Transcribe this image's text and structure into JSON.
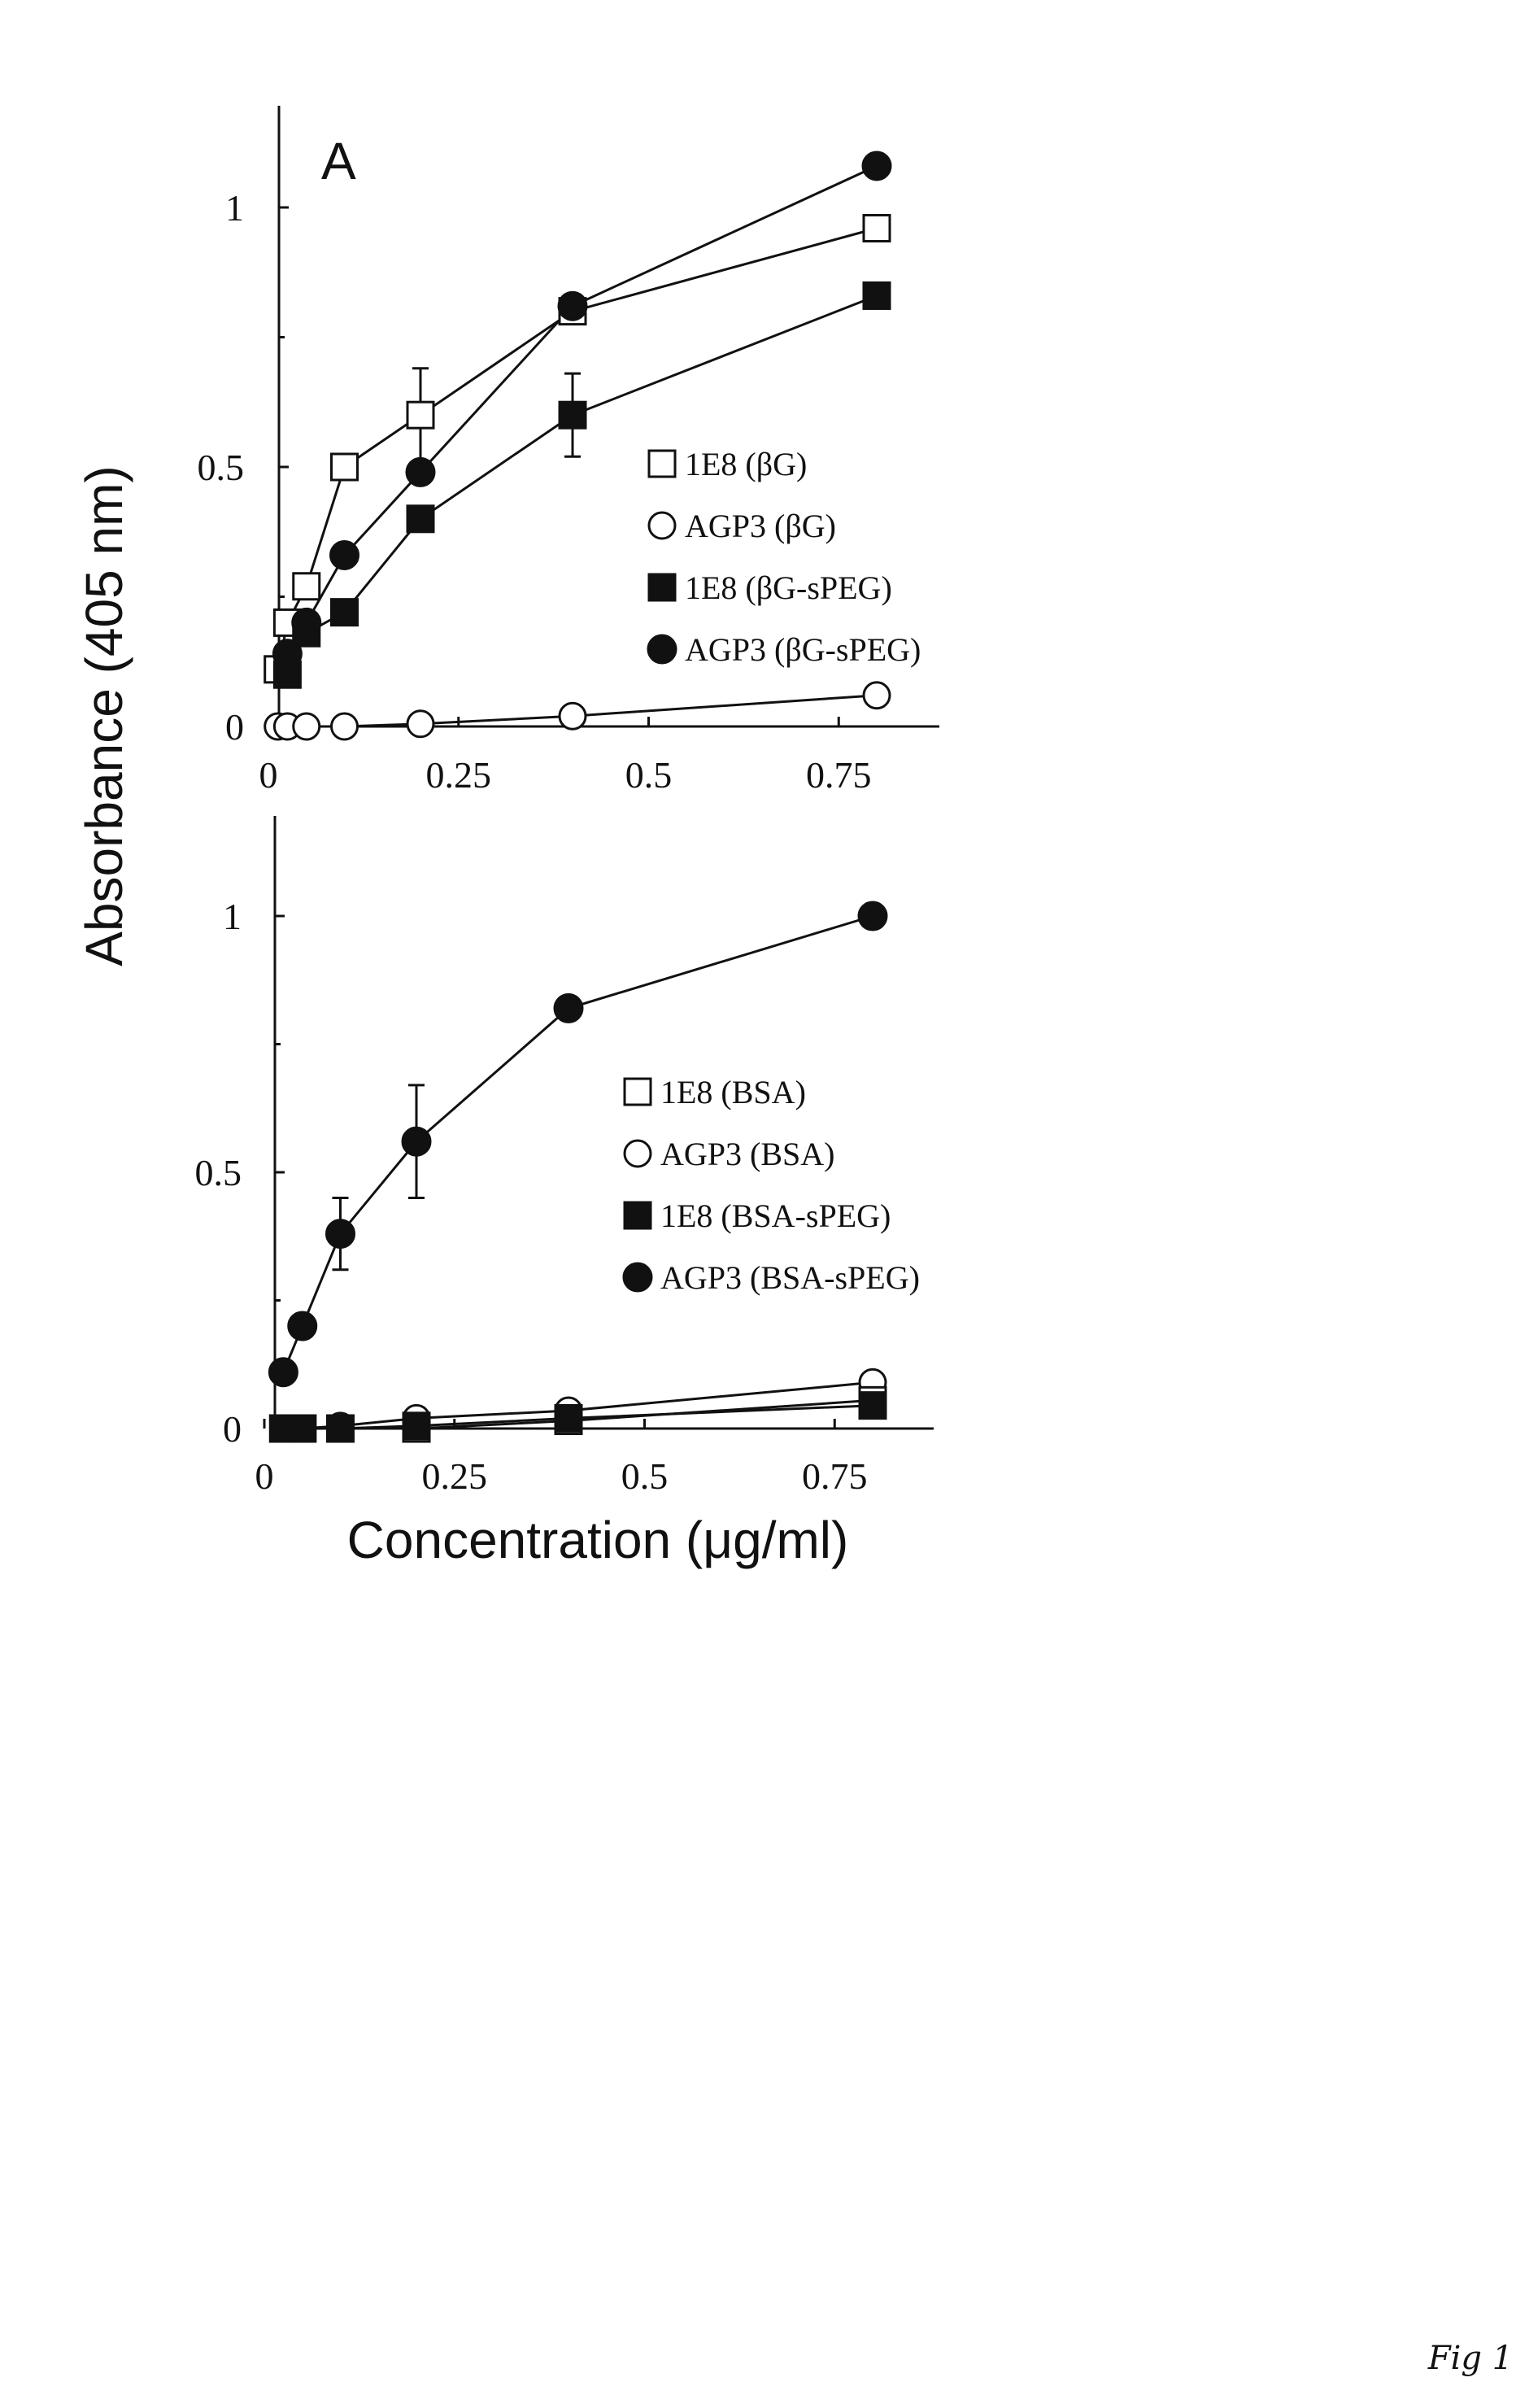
{
  "chart_data": [
    {
      "type": "line",
      "panel_label": "A",
      "ylabel": "Absorbance (405 nm)",
      "xlabel": "",
      "xlim": [
        0,
        0.9
      ],
      "ylim": [
        0,
        1.2
      ],
      "xticks": [
        "0",
        "0.25",
        "0.5",
        "0.75"
      ],
      "yticks": [
        "0",
        "0.5",
        "1"
      ],
      "legend_position": "center-right",
      "grid": false,
      "series": [
        {
          "name": "1E8 (βG)",
          "marker": "open-square",
          "x": [
            0.0125,
            0.025,
            0.05,
            0.1,
            0.2,
            0.4,
            0.8
          ],
          "y": [
            0.11,
            0.2,
            0.27,
            0.5,
            0.6,
            0.8,
            0.96
          ]
        },
        {
          "name": "AGP3 (βG)",
          "marker": "open-circle",
          "x": [
            0.0125,
            0.025,
            0.05,
            0.1,
            0.2,
            0.4,
            0.8
          ],
          "y": [
            0.0,
            0.0,
            0.0,
            0.0,
            0.005,
            0.02,
            0.06
          ]
        },
        {
          "name": "1E8 (βG-sPEG)",
          "marker": "filled-square",
          "x": [
            0.025,
            0.05,
            0.1,
            0.2,
            0.4,
            0.8
          ],
          "y": [
            0.1,
            0.18,
            0.22,
            0.4,
            0.6,
            0.83
          ],
          "errors": [
            0,
            0,
            0,
            0,
            0.08,
            0
          ]
        },
        {
          "name": "AGP3 (βG-sPEG)",
          "marker": "filled-circle",
          "x": [
            0.025,
            0.05,
            0.1,
            0.2,
            0.4,
            0.8
          ],
          "y": [
            0.14,
            0.2,
            0.33,
            0.49,
            0.81,
            1.08
          ]
        }
      ],
      "error_bars_on": [
        {
          "series": "1E8 (βG)",
          "x": 0.2,
          "error": 0.09
        }
      ]
    },
    {
      "type": "line",
      "panel_label": "",
      "ylabel": "Absorbance (405 nm)",
      "xlabel": "Concentration (μg/ml)",
      "xlim": [
        0,
        0.9
      ],
      "ylim": [
        0,
        1.2
      ],
      "xticks": [
        "0",
        "0.25",
        "0.5",
        "0.75"
      ],
      "yticks": [
        "0",
        "0.5",
        "1"
      ],
      "legend_position": "center-right",
      "grid": false,
      "series": [
        {
          "name": "1E8 (BSA)",
          "marker": "open-square",
          "x": [
            0.025,
            0.05,
            0.1,
            0.2,
            0.4,
            0.8
          ],
          "y": [
            0.0,
            0.0,
            0.0,
            0.0,
            0.015,
            0.055
          ]
        },
        {
          "name": "AGP3 (BSA)",
          "marker": "open-circle",
          "x": [
            0.025,
            0.05,
            0.1,
            0.2,
            0.4,
            0.8
          ],
          "y": [
            0.0,
            0.0,
            0.005,
            0.02,
            0.035,
            0.09
          ]
        },
        {
          "name": "1E8 (BSA-sPEG)",
          "marker": "filled-square",
          "x": [
            0.025,
            0.05,
            0.1,
            0.2,
            0.4,
            0.8
          ],
          "y": [
            0.0,
            0.0,
            0.0,
            0.005,
            0.02,
            0.045
          ]
        },
        {
          "name": "AGP3 (BSA-sPEG)",
          "marker": "filled-circle",
          "x": [
            0.025,
            0.05,
            0.1,
            0.2,
            0.4,
            0.8
          ],
          "y": [
            0.11,
            0.2,
            0.38,
            0.56,
            0.82,
            1.0
          ],
          "errors": [
            0,
            0,
            0.07,
            0.11,
            0,
            0
          ]
        }
      ]
    }
  ],
  "footnote": "Fig 1"
}
